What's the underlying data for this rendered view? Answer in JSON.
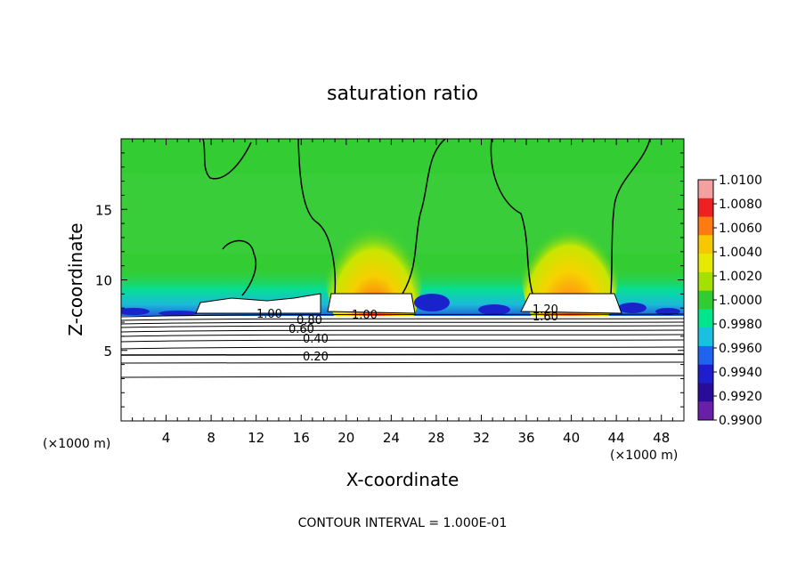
{
  "chart_data": {
    "type": "heatmap",
    "title": "saturation ratio",
    "xlabel": "X-coordinate",
    "ylabel": "Z-coordinate",
    "x_unit_left": "(×1000 m)",
    "x_unit_right": "(×1000 m)",
    "xlim": [
      0,
      50
    ],
    "ylim": [
      0,
      20
    ],
    "x_ticks": [
      "4",
      "8",
      "12",
      "16",
      "20",
      "24",
      "28",
      "32",
      "36",
      "40",
      "44",
      "48"
    ],
    "y_ticks": [
      "5",
      "10",
      "15"
    ],
    "colorbar_ticks": [
      "1.0100",
      "1.0080",
      "1.0060",
      "1.0040",
      "1.0020",
      "1.0000",
      "0.9980",
      "0.9960",
      "0.9940",
      "0.9920",
      "0.9900"
    ],
    "colorbar_colors": [
      "#f4a0a0",
      "#ee2020",
      "#ff7a10",
      "#f5c800",
      "#e6ea00",
      "#a4e000",
      "#32cc32",
      "#00e68c",
      "#19c0e0",
      "#1e64ee",
      "#1e1ecc",
      "#2a0c9a",
      "#6a1fa8"
    ],
    "contour_labels": [
      "1.00",
      "0.80",
      "0.60",
      "0.40",
      "0.20",
      "1.00",
      "1.20",
      "1.60"
    ],
    "contour_interval_text": "CONTOUR INTERVAL = 1.000E-01",
    "series": [
      {
        "plume_center_x": 22,
        "peak_value": 1.0075
      },
      {
        "plume_center_x": 40,
        "peak_value": 1.0065
      }
    ]
  }
}
